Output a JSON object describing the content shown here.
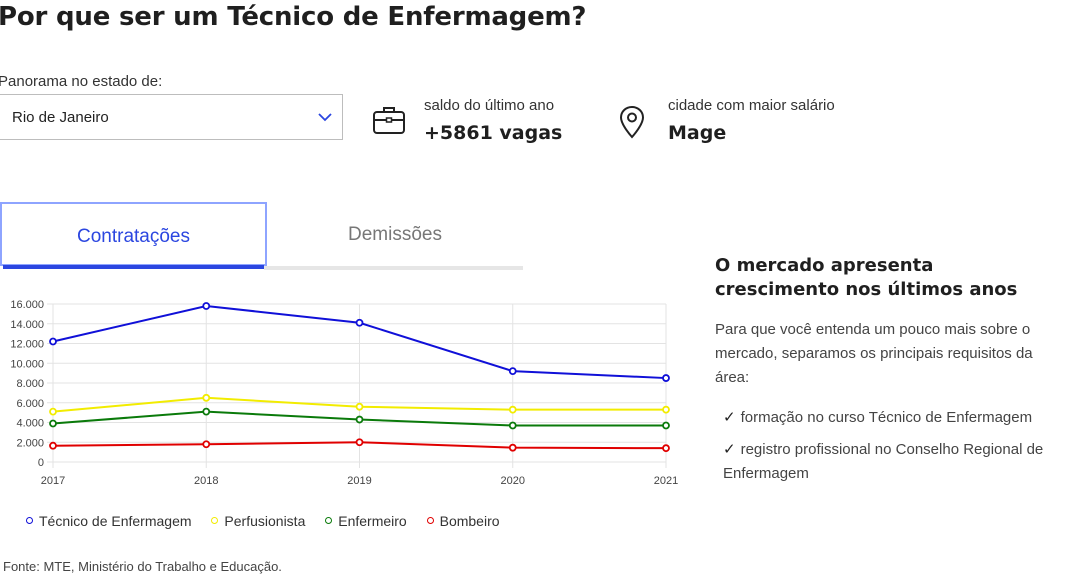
{
  "page": {
    "title": "Por que ser um Técnico de Enfermagem?"
  },
  "state_filter": {
    "label": "Panorama no estado de:",
    "selected": "Rio de Janeiro"
  },
  "stats": [
    {
      "icon": "briefcase-icon",
      "caption": "saldo do último ano",
      "value": "+5861 vagas"
    },
    {
      "icon": "location-pin-icon",
      "caption": "cidade com maior salário",
      "value": "Mage"
    }
  ],
  "tabs": [
    {
      "label": "Contratações",
      "active": true
    },
    {
      "label": "Demissões",
      "active": false
    }
  ],
  "chart_data": {
    "type": "line",
    "x": [
      "2017",
      "2018",
      "2019",
      "2020",
      "2021"
    ],
    "yticks": [
      "0",
      "2.000",
      "4.000",
      "6.000",
      "8.000",
      "10.000",
      "12.000",
      "14.000",
      "16.000"
    ],
    "ylim": [
      0,
      16000
    ],
    "grid": true,
    "legend_position": "bottom",
    "series": [
      {
        "name": "Técnico de Enfermagem",
        "color": "#1010d8",
        "values": [
          12200,
          15800,
          14100,
          9200,
          8500
        ]
      },
      {
        "name": "Perfusionista",
        "color": "#f2ec00",
        "values": [
          5100,
          6500,
          5600,
          5300,
          5300
        ]
      },
      {
        "name": "Enfermeiro",
        "color": "#0a7a0a",
        "values": [
          3900,
          5100,
          4300,
          3700,
          3700
        ]
      },
      {
        "name": "Bombeiro",
        "color": "#e00000",
        "values": [
          1650,
          1800,
          2000,
          1450,
          1400
        ]
      }
    ]
  },
  "source": "Fonte: MTE, Ministério do Trabalho e Educação.",
  "sidebar": {
    "heading": "O mercado apresenta crescimento nos últimos anos",
    "intro": "Para que você entenda um pouco mais sobre o mercado, separamos os principais requisitos da área:",
    "requirements": [
      "formação no curso Técnico de Enfermagem",
      "registro profissional no Conselho Regional de Enfermagem"
    ]
  }
}
